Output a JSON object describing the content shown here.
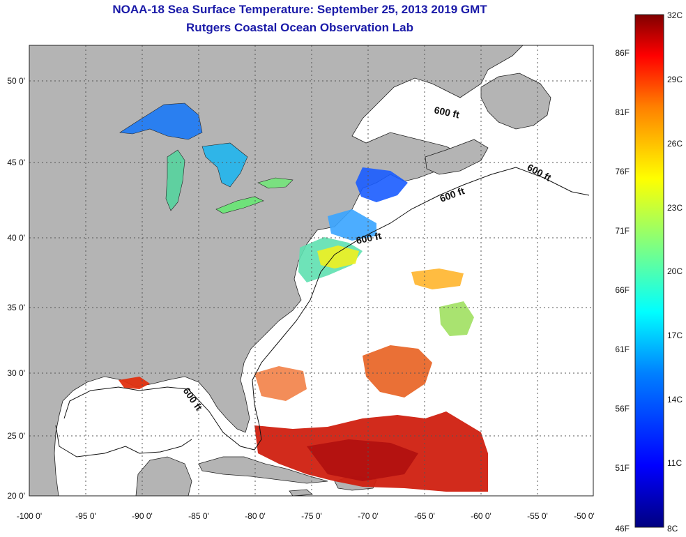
{
  "title": {
    "line1": "NOAA-18 Sea Surface Temperature:  September 25, 2013 2019 GMT",
    "line2": "Rutgers Coastal Ocean Observation Lab"
  },
  "map": {
    "lon_ticks": [
      "-100 0'",
      "-95 0'",
      "-90 0'",
      "-85 0'",
      "-80 0'",
      "-75 0'",
      "-70 0'",
      "-65 0'",
      "-60 0'",
      "-55 0'",
      "-50 0'"
    ],
    "lat_ticks": [
      "50 0'",
      "45 0'",
      "40 0'",
      "35 0'",
      "30 0'",
      "25 0'",
      "20 0'"
    ],
    "contour_label": "600 ft",
    "land_color": "#b4b4b4",
    "ocean_color": "#ffffff",
    "grid_color": "#555555"
  },
  "colorbar": {
    "fahrenheit_labels": [
      "86F",
      "81F",
      "76F",
      "71F",
      "66F",
      "61F",
      "56F",
      "51F",
      "46F"
    ],
    "celsius_labels": [
      "32C",
      "29C",
      "26C",
      "23C",
      "20C",
      "17C",
      "14C",
      "11C",
      "8C"
    ],
    "colors": [
      "#000080",
      "#0000ff",
      "#0080ff",
      "#00ffff",
      "#80ff80",
      "#ffff00",
      "#ff8000",
      "#ff0000",
      "#800000"
    ]
  }
}
